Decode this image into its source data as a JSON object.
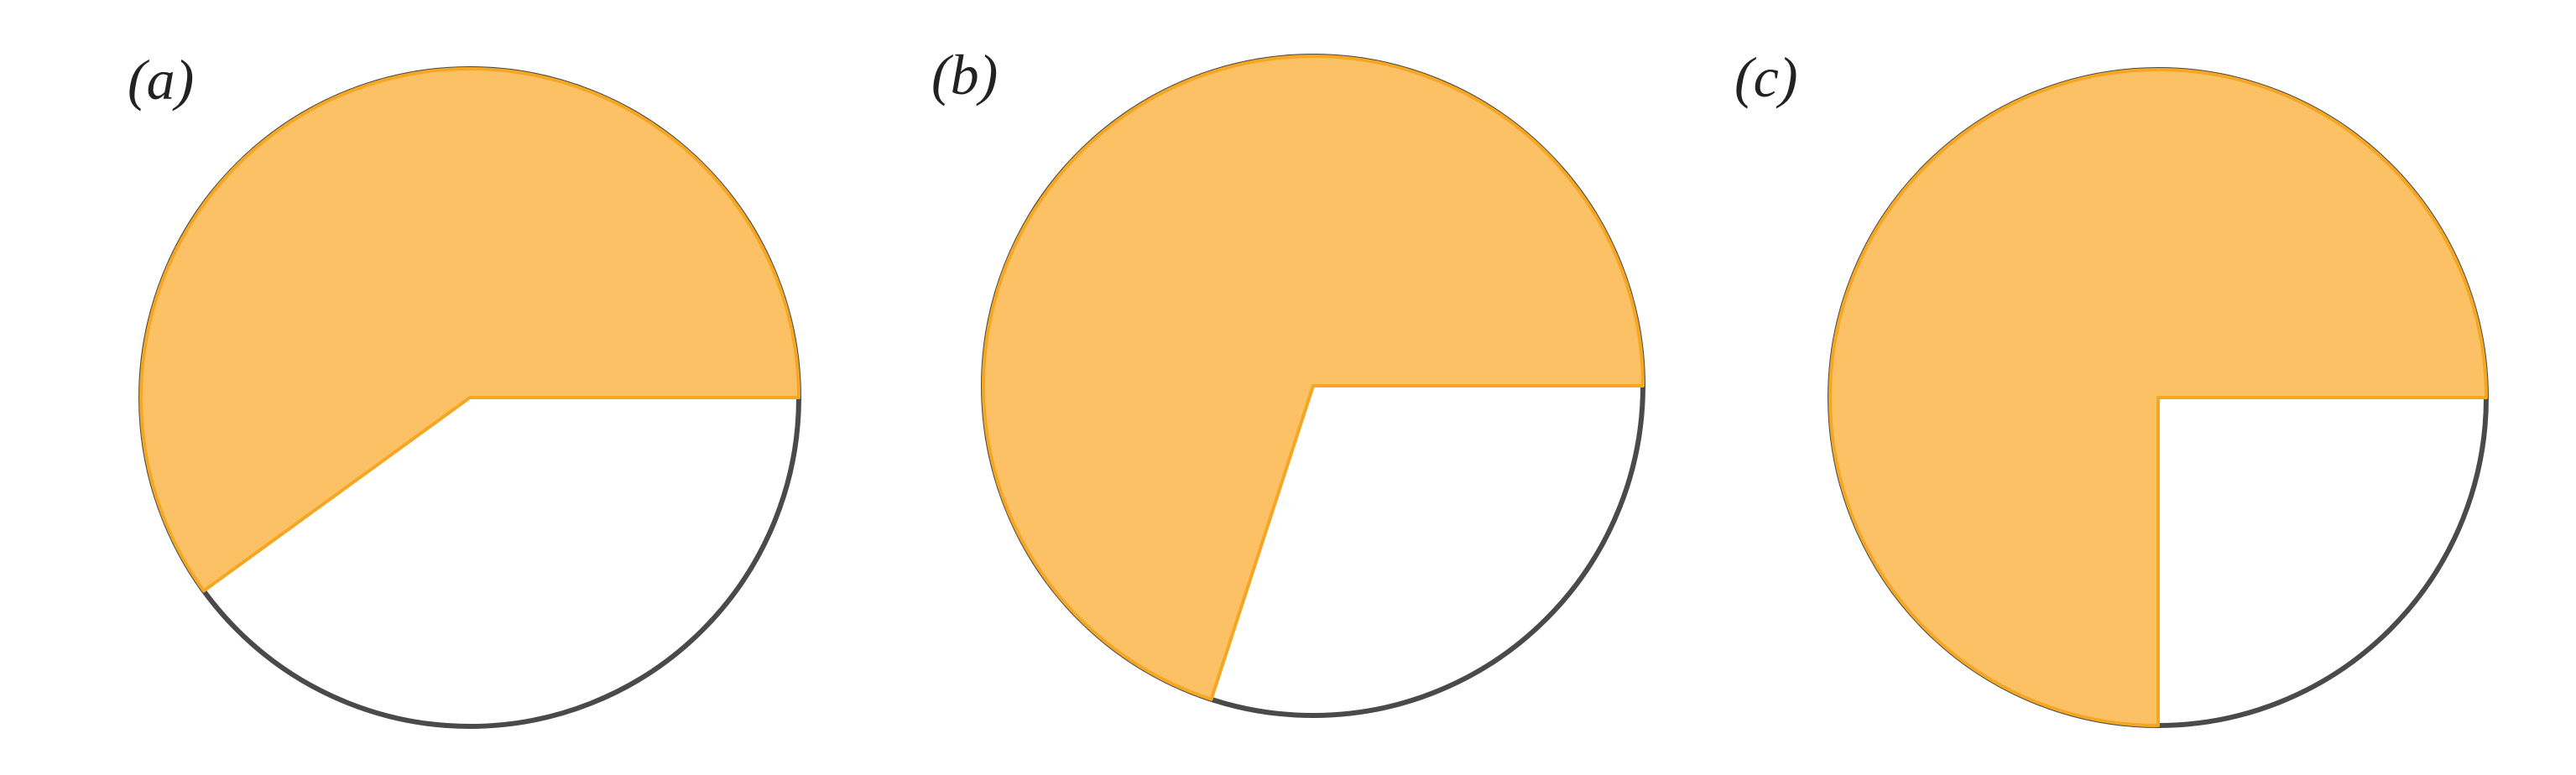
{
  "panels": [
    {
      "label": "(a)",
      "fraction": 0.6
    },
    {
      "label": "(b)",
      "fraction": 0.7
    },
    {
      "label": "(c)",
      "fraction": 0.75
    }
  ],
  "colors": {
    "sector_fill": "#FDC165",
    "sector_stroke": "#F5A623",
    "sector_edge_dark": "#C98A1E",
    "circle_outline": "#4A4A4A",
    "label_text": "#222222",
    "background": "#FFFFFF"
  }
}
